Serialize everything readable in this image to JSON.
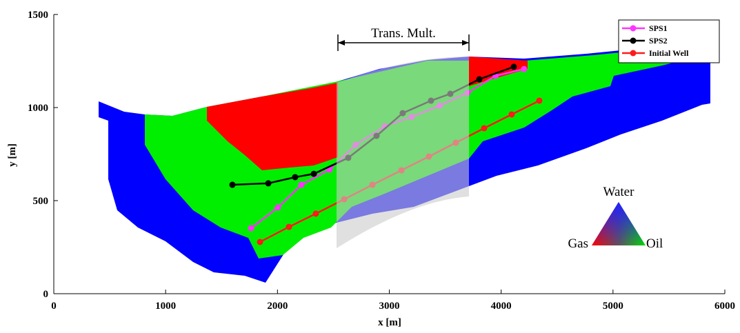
{
  "chart_data": {
    "type": "line",
    "xlabel": "x [m]",
    "ylabel": "y [m]",
    "xlim": [
      0,
      6000
    ],
    "xticks": [
      0,
      1000,
      2000,
      3000,
      4000,
      5000,
      6000
    ],
    "ylim": [
      0,
      1500
    ],
    "yticks": [
      0,
      500,
      1000,
      1500
    ],
    "legend": "upper right",
    "annotations": {
      "band": "Trans. Mult.",
      "ternary": [
        "Water",
        "Gas",
        "Oil"
      ]
    },
    "series": [
      {
        "name": "SPS1",
        "color": "#ff33ff",
        "x": [
          1764,
          2004,
          2214,
          2467,
          2700,
          2960,
          3200,
          3450,
          3700,
          3950,
          4205
        ],
        "values": [
          352,
          463,
          585,
          667,
          800,
          900,
          950,
          1010,
          1080,
          1170,
          1207
        ]
      },
      {
        "name": "SPS2",
        "color": "#000000",
        "x": [
          1597,
          1918,
          2158,
          2325,
          2633,
          2886,
          3120,
          3373,
          3546,
          3805,
          4113
        ],
        "values": [
          585,
          593,
          626,
          644,
          730,
          848,
          970,
          1037,
          1074,
          1152,
          1219
        ]
      },
      {
        "name": "Initial Well",
        "color": "#ff1a1a",
        "x": [
          1844,
          2103,
          2343,
          2596,
          2849,
          3108,
          3354,
          3595,
          3848,
          4094,
          4341
        ],
        "values": [
          278,
          359,
          430,
          507,
          585,
          663,
          737,
          811,
          889,
          963,
          1037
        ]
      }
    ]
  }
}
